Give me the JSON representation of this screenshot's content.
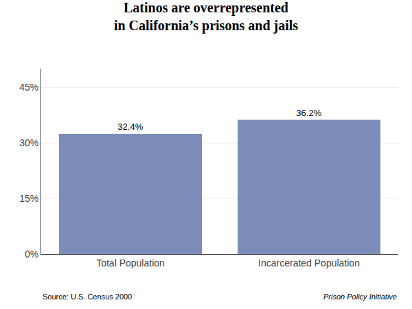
{
  "chart_data": {
    "type": "bar",
    "title": "Latinos are overrepresented\nin California’s prisons and jails",
    "categories": [
      "Total Population",
      "Incarcerated Population"
    ],
    "values": [
      32.4,
      36.2
    ],
    "value_labels": [
      "32.4%",
      "36.2%"
    ],
    "data_labels": true,
    "color": "#7b8db8",
    "ylim": [
      0,
      50
    ],
    "yticks": [
      {
        "value": 0,
        "label": "0%"
      },
      {
        "value": 15,
        "label": "15%"
      },
      {
        "value": 30,
        "label": "30%"
      },
      {
        "value": 45,
        "label": "45%"
      }
    ],
    "grid": true,
    "annotations": [
      "Source: U.S. Census 2000",
      "Prison Policy Initiative"
    ]
  }
}
